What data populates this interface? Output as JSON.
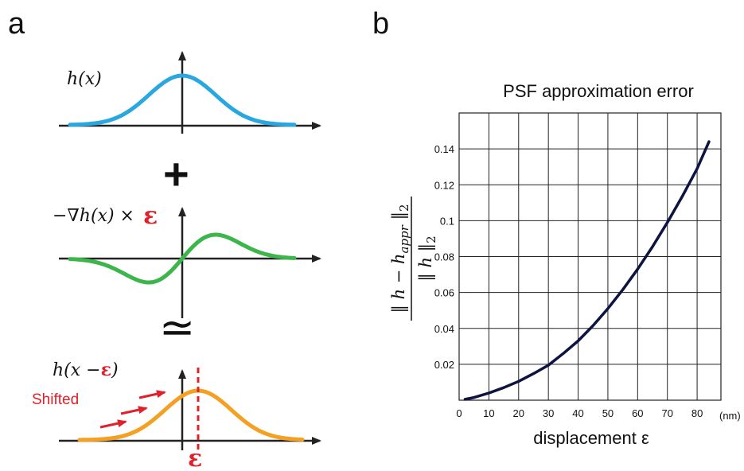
{
  "panel_a": {
    "letter": "a",
    "label_top": "h(x)",
    "plus": "+",
    "label_mid": "−∇h(x) ×",
    "epsilon": "ε",
    "approx": "≃",
    "label_bottom_prefix": "h(x −",
    "label_bottom_eps": "ε",
    "label_bottom_suffix": ")",
    "shifted": "Shifted",
    "bottom_eps": "ε",
    "colors": {
      "top": "#29a8e0",
      "mid": "#3cb54a",
      "bottom": "#f4a023",
      "red": "#e0202a"
    }
  },
  "panel_b": {
    "letter": "b",
    "ylabel_num": "‖ h − h",
    "ylabel_sub": "appr",
    "ylabel_end": " ‖",
    "ylabel_2": "2",
    "ylabel_den": "‖ h ‖",
    "ylabel_den2": "2",
    "xunit": "(nm)"
  },
  "chart_data": {
    "type": "line",
    "title": "PSF approximation error",
    "xlabel": "displacement ε",
    "ylabel": "‖ h − h_appr ‖2 / ‖ h ‖2",
    "xlim": [
      0,
      88
    ],
    "ylim": [
      0,
      0.16
    ],
    "grid": true,
    "xticks": [
      0,
      10,
      20,
      30,
      40,
      50,
      60,
      70,
      80
    ],
    "yticks": [
      0.02,
      0.04,
      0.06,
      0.08,
      0.1,
      0.12,
      0.14
    ],
    "ytick_labels": [
      "0.02",
      "0.04",
      "0.06",
      "0.08",
      "0.1",
      "0.12",
      "0.14"
    ],
    "series": [
      {
        "x": [
          2,
          5,
          10,
          15,
          20,
          25,
          30,
          35,
          40,
          45,
          50,
          55,
          60,
          65,
          70,
          75,
          80,
          84
        ],
        "y": [
          0.0005,
          0.0015,
          0.004,
          0.007,
          0.0105,
          0.0148,
          0.0195,
          0.026,
          0.033,
          0.0415,
          0.051,
          0.0615,
          0.073,
          0.0855,
          0.099,
          0.1135,
          0.129,
          0.144
        ],
        "color": "#0d1440"
      }
    ]
  }
}
